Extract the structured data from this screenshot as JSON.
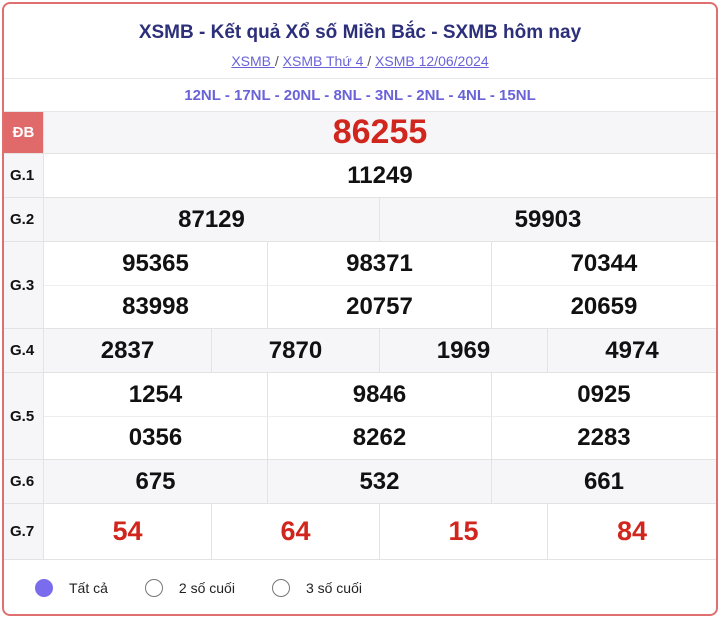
{
  "header": {
    "title": "XSMB - Kết quả Xổ số Miền Bắc - SXMB hôm nay",
    "breadcrumbs": [
      "XSMB ",
      "XSMB Thứ 4 ",
      "XSMB 12/06/2024"
    ],
    "separator": "/"
  },
  "nl_codes": "12NL - 17NL - 20NL - 8NL - 3NL - 2NL - 4NL - 15NL",
  "prizes": {
    "db": {
      "label": "ĐB",
      "numbers": [
        "86255"
      ]
    },
    "g1": {
      "label": "G.1",
      "numbers": [
        "11249"
      ]
    },
    "g2": {
      "label": "G.2",
      "numbers": [
        "87129",
        "59903"
      ]
    },
    "g3": {
      "label": "G.3",
      "numbers": [
        "95365",
        "98371",
        "70344",
        "83998",
        "20757",
        "20659"
      ]
    },
    "g4": {
      "label": "G.4",
      "numbers": [
        "2837",
        "7870",
        "1969",
        "4974"
      ]
    },
    "g5": {
      "label": "G.5",
      "numbers": [
        "1254",
        "9846",
        "0925",
        "0356",
        "8262",
        "2283"
      ]
    },
    "g6": {
      "label": "G.6",
      "numbers": [
        "675",
        "532",
        "661"
      ]
    },
    "g7": {
      "label": "G.7",
      "numbers": [
        "54",
        "64",
        "15",
        "84"
      ]
    }
  },
  "filter": {
    "options": [
      "Tất cả",
      "2 số cuối",
      "3 số cuối"
    ],
    "selected": "Tất cả"
  },
  "colors": {
    "accent": "#6a63d8",
    "title": "#2c2f7a",
    "highlight": "#d1261d",
    "border": "#e07070"
  }
}
